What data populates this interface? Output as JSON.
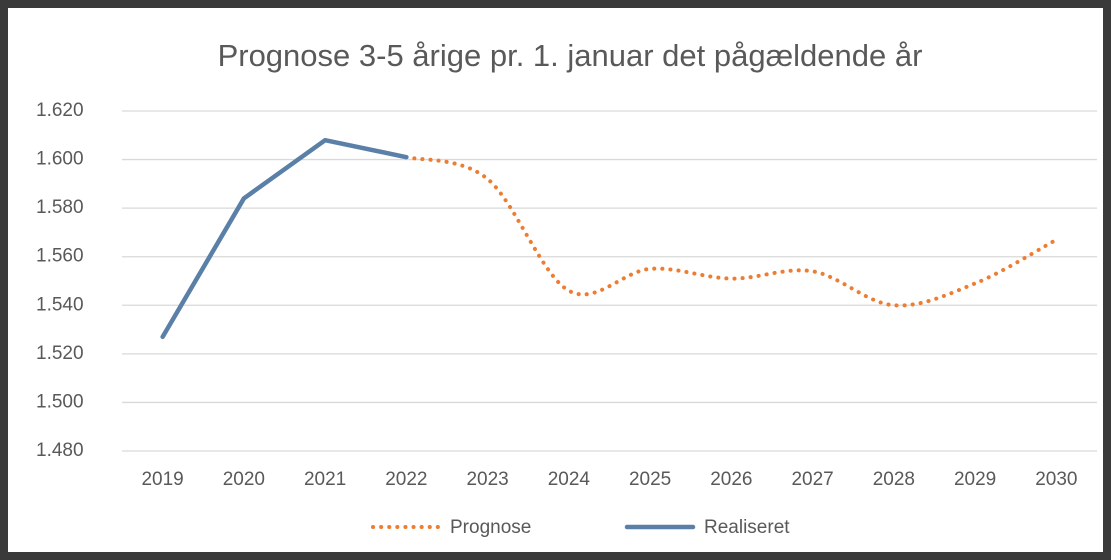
{
  "chart_data": {
    "type": "line",
    "title": "Prognose 3-5 årige pr. 1. januar det pågældende år",
    "categories": [
      "2019",
      "2020",
      "2021",
      "2022",
      "2023",
      "2024",
      "2025",
      "2026",
      "2027",
      "2028",
      "2029",
      "2030"
    ],
    "series": [
      {
        "name": "Prognose",
        "color": "#ed7d31",
        "style": "dotted",
        "smooth": true,
        "values": [
          null,
          null,
          null,
          1601,
          1592,
          1546,
          1555,
          1551,
          1554,
          1540,
          1549,
          1567
        ]
      },
      {
        "name": "Realiseret",
        "color": "#5b80a8",
        "style": "solid",
        "smooth": false,
        "values": [
          1527,
          1584,
          1608,
          1601,
          null,
          null,
          null,
          null,
          null,
          null,
          null,
          null
        ]
      }
    ],
    "ylim": [
      1480,
      1620
    ],
    "yticks": [
      {
        "value": 1480,
        "label": "1.480"
      },
      {
        "value": 1500,
        "label": "1.500"
      },
      {
        "value": 1520,
        "label": "1.520"
      },
      {
        "value": 1540,
        "label": "1.540"
      },
      {
        "value": 1560,
        "label": "1.560"
      },
      {
        "value": 1580,
        "label": "1.580"
      },
      {
        "value": 1600,
        "label": "1.600"
      },
      {
        "value": 1620,
        "label": "1.620"
      }
    ],
    "grid": true,
    "legend": "bottom"
  }
}
